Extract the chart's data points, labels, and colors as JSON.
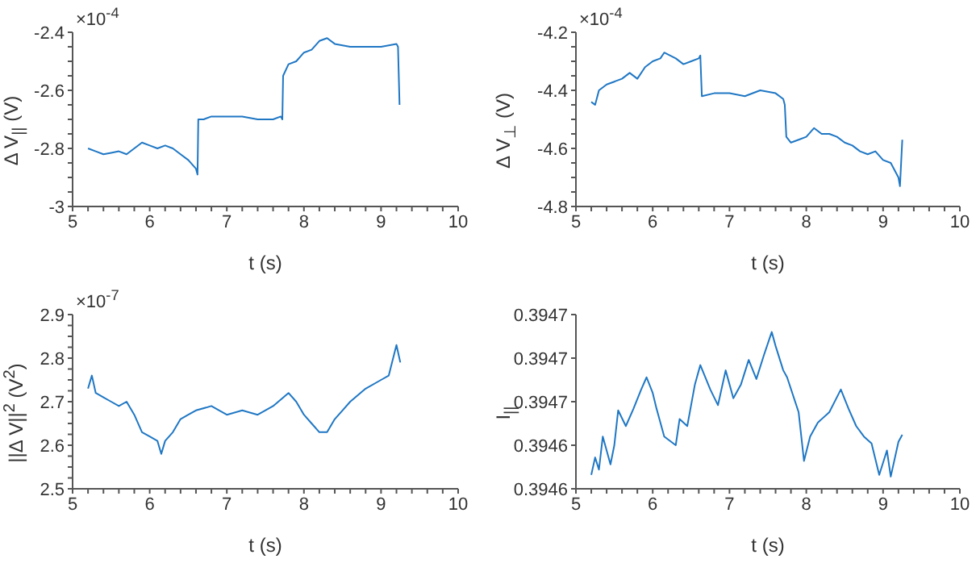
{
  "chart_data": [
    {
      "type": "line",
      "xlabel": "t (s)",
      "ylabel": "Δ V$_{||}$ (V)",
      "annotations": [
        "×10$^{-4}$"
      ],
      "color": "#1f77c4",
      "x": [
        5.2,
        5.3,
        5.4,
        5.5,
        5.6,
        5.7,
        5.8,
        5.9,
        6.0,
        6.1,
        6.2,
        6.3,
        6.4,
        6.5,
        6.6,
        6.62,
        6.63,
        6.7,
        6.8,
        7.0,
        7.2,
        7.4,
        7.6,
        7.7,
        7.72,
        7.73,
        7.8,
        7.9,
        8.0,
        8.1,
        8.2,
        8.3,
        8.4,
        8.6,
        8.8,
        9.0,
        9.2,
        9.22,
        9.24
      ],
      "values": [
        -2.8,
        -2.81,
        -2.82,
        -2.815,
        -2.81,
        -2.82,
        -2.8,
        -2.78,
        -2.79,
        -2.8,
        -2.79,
        -2.8,
        -2.82,
        -2.84,
        -2.87,
        -2.89,
        -2.7,
        -2.7,
        -2.69,
        -2.69,
        -2.69,
        -2.7,
        -2.7,
        -2.69,
        -2.7,
        -2.55,
        -2.51,
        -2.5,
        -2.47,
        -2.46,
        -2.43,
        -2.42,
        -2.44,
        -2.45,
        -2.45,
        -2.45,
        -2.44,
        -2.45,
        -2.65
      ],
      "xlim": [
        5,
        10
      ],
      "xticks": [
        5,
        {
          "value": 5.2,
          "label": null
        },
        {
          "value": 5.4,
          "label": null
        },
        {
          "value": 5.6,
          "label": null
        },
        {
          "value": 5.8,
          "label": null
        },
        6,
        {
          "value": 6.2,
          "label": null
        },
        {
          "value": 6.4,
          "label": null
        },
        {
          "value": 6.6,
          "label": null
        },
        {
          "value": 6.8,
          "label": null
        },
        7,
        {
          "value": 7.2,
          "label": null
        },
        {
          "value": 7.4,
          "label": null
        },
        {
          "value": 7.6,
          "label": null
        },
        {
          "value": 7.8,
          "label": null
        },
        8,
        {
          "value": 8.2,
          "label": null
        },
        {
          "value": 8.4,
          "label": null
        },
        {
          "value": 8.6,
          "label": null
        },
        {
          "value": 8.8,
          "label": null
        },
        9,
        {
          "value": 9.2,
          "label": null
        },
        {
          "value": 9.4,
          "label": null
        },
        {
          "value": 9.6,
          "label": null
        },
        {
          "value": 9.8,
          "label": null
        },
        10
      ],
      "ylim": [
        -3,
        -2.4
      ],
      "yticks": [
        -3,
        {
          "value": -2.95,
          "label": null
        },
        {
          "value": -2.9,
          "label": null
        },
        {
          "value": -2.85,
          "label": null
        },
        -2.8,
        {
          "value": -2.75,
          "label": null
        },
        {
          "value": -2.7,
          "label": null
        },
        {
          "value": -2.65,
          "label": null
        },
        -2.6,
        {
          "value": -2.55,
          "label": null
        },
        {
          "value": -2.5,
          "label": null
        },
        {
          "value": -2.45,
          "label": null
        },
        -2.4
      ]
    },
    {
      "type": "line",
      "xlabel": "t (s)",
      "ylabel": "Δ V$_{⊥}$ (V)",
      "annotations": [
        "×10$^{-4}$"
      ],
      "color": "#1f77c4",
      "x": [
        5.2,
        5.25,
        5.3,
        5.4,
        5.5,
        5.6,
        5.7,
        5.8,
        5.9,
        6.0,
        6.1,
        6.15,
        6.3,
        6.4,
        6.5,
        6.6,
        6.62,
        6.64,
        6.8,
        7.0,
        7.2,
        7.4,
        7.6,
        7.7,
        7.72,
        7.74,
        7.8,
        7.9,
        8.0,
        8.1,
        8.2,
        8.3,
        8.4,
        8.5,
        8.6,
        8.7,
        8.8,
        8.9,
        9.0,
        9.1,
        9.2,
        9.22,
        9.25
      ],
      "values": [
        -4.44,
        -4.45,
        -4.4,
        -4.38,
        -4.37,
        -4.36,
        -4.34,
        -4.36,
        -4.32,
        -4.3,
        -4.29,
        -4.27,
        -4.29,
        -4.31,
        -4.3,
        -4.29,
        -4.28,
        -4.42,
        -4.41,
        -4.41,
        -4.42,
        -4.4,
        -4.41,
        -4.43,
        -4.45,
        -4.56,
        -4.58,
        -4.57,
        -4.56,
        -4.53,
        -4.55,
        -4.55,
        -4.56,
        -4.58,
        -4.59,
        -4.61,
        -4.62,
        -4.61,
        -4.64,
        -4.65,
        -4.7,
        -4.73,
        -4.57
      ],
      "xlim": [
        5,
        10
      ],
      "xticks": [
        5,
        {
          "value": 5.2,
          "label": null
        },
        {
          "value": 5.4,
          "label": null
        },
        {
          "value": 5.6,
          "label": null
        },
        {
          "value": 5.8,
          "label": null
        },
        6,
        {
          "value": 6.2,
          "label": null
        },
        {
          "value": 6.4,
          "label": null
        },
        {
          "value": 6.6,
          "label": null
        },
        {
          "value": 6.8,
          "label": null
        },
        7,
        {
          "value": 7.2,
          "label": null
        },
        {
          "value": 7.4,
          "label": null
        },
        {
          "value": 7.6,
          "label": null
        },
        {
          "value": 7.8,
          "label": null
        },
        8,
        {
          "value": 8.2,
          "label": null
        },
        {
          "value": 8.4,
          "label": null
        },
        {
          "value": 8.6,
          "label": null
        },
        {
          "value": 8.8,
          "label": null
        },
        9,
        {
          "value": 9.2,
          "label": null
        },
        {
          "value": 9.4,
          "label": null
        },
        {
          "value": 9.6,
          "label": null
        },
        {
          "value": 9.8,
          "label": null
        },
        10
      ],
      "ylim": [
        -4.8,
        -4.2
      ],
      "yticks": [
        -4.8,
        {
          "value": -4.75,
          "label": null
        },
        {
          "value": -4.7,
          "label": null
        },
        {
          "value": -4.65,
          "label": null
        },
        -4.6,
        {
          "value": -4.55,
          "label": null
        },
        {
          "value": -4.5,
          "label": null
        },
        {
          "value": -4.45,
          "label": null
        },
        -4.4,
        {
          "value": -4.35,
          "label": null
        },
        {
          "value": -4.3,
          "label": null
        },
        {
          "value": -4.25,
          "label": null
        },
        -4.2
      ]
    },
    {
      "type": "line",
      "xlabel": "t (s)",
      "ylabel": "||Δ V||$^{2}$ (V$^{2}$)",
      "annotations": [
        "×10$^{-7}$"
      ],
      "color": "#1f77c4",
      "x": [
        5.2,
        5.25,
        5.3,
        5.4,
        5.5,
        5.6,
        5.7,
        5.8,
        5.9,
        6.0,
        6.1,
        6.15,
        6.2,
        6.3,
        6.4,
        6.5,
        6.6,
        6.8,
        7.0,
        7.2,
        7.4,
        7.6,
        7.8,
        7.9,
        8.0,
        8.1,
        8.2,
        8.3,
        8.4,
        8.5,
        8.6,
        8.8,
        9.0,
        9.1,
        9.2,
        9.25
      ],
      "values": [
        2.73,
        2.76,
        2.72,
        2.71,
        2.7,
        2.69,
        2.7,
        2.67,
        2.63,
        2.62,
        2.61,
        2.58,
        2.61,
        2.63,
        2.66,
        2.67,
        2.68,
        2.69,
        2.67,
        2.68,
        2.67,
        2.69,
        2.72,
        2.7,
        2.67,
        2.65,
        2.63,
        2.63,
        2.66,
        2.68,
        2.7,
        2.73,
        2.75,
        2.76,
        2.83,
        2.79
      ],
      "xlim": [
        5,
        10
      ],
      "xticks": [
        5,
        {
          "value": 5.2,
          "label": null
        },
        {
          "value": 5.4,
          "label": null
        },
        {
          "value": 5.6,
          "label": null
        },
        {
          "value": 5.8,
          "label": null
        },
        6,
        {
          "value": 6.2,
          "label": null
        },
        {
          "value": 6.4,
          "label": null
        },
        {
          "value": 6.6,
          "label": null
        },
        {
          "value": 6.8,
          "label": null
        },
        7,
        {
          "value": 7.2,
          "label": null
        },
        {
          "value": 7.4,
          "label": null
        },
        {
          "value": 7.6,
          "label": null
        },
        {
          "value": 7.8,
          "label": null
        },
        8,
        {
          "value": 8.2,
          "label": null
        },
        {
          "value": 8.4,
          "label": null
        },
        {
          "value": 8.6,
          "label": null
        },
        {
          "value": 8.8,
          "label": null
        },
        9,
        {
          "value": 9.2,
          "label": null
        },
        {
          "value": 9.4,
          "label": null
        },
        {
          "value": 9.6,
          "label": null
        },
        {
          "value": 9.8,
          "label": null
        },
        10
      ],
      "ylim": [
        2.5,
        2.9
      ],
      "yticks": [
        2.5,
        {
          "value": 2.525,
          "label": null
        },
        {
          "value": 2.55,
          "label": null
        },
        {
          "value": 2.575,
          "label": null
        },
        2.6,
        {
          "value": 2.625,
          "label": null
        },
        {
          "value": 2.65,
          "label": null
        },
        {
          "value": 2.675,
          "label": null
        },
        2.7,
        {
          "value": 2.725,
          "label": null
        },
        {
          "value": 2.75,
          "label": null
        },
        {
          "value": 2.775,
          "label": null
        },
        2.8,
        {
          "value": 2.825,
          "label": null
        },
        {
          "value": 2.85,
          "label": null
        },
        {
          "value": 2.875,
          "label": null
        },
        2.9
      ]
    },
    {
      "type": "line",
      "xlabel": "t (s)",
      "ylabel": "I$_{||}$",
      "color": "#1f77c4",
      "x": [
        5.2,
        5.25,
        5.3,
        5.35,
        5.45,
        5.5,
        5.55,
        5.65,
        5.75,
        5.85,
        5.92,
        6.0,
        6.05,
        6.15,
        6.3,
        6.35,
        6.45,
        6.55,
        6.62,
        6.75,
        6.85,
        6.95,
        7.05,
        7.15,
        7.25,
        7.35,
        7.45,
        7.55,
        7.6,
        7.7,
        7.75,
        7.9,
        7.97,
        8.05,
        8.15,
        8.3,
        8.45,
        8.55,
        8.65,
        8.75,
        8.85,
        8.95,
        9.05,
        9.1,
        9.2,
        9.25
      ],
      "values": [
        0.394623,
        0.394633,
        0.394626,
        0.394645,
        0.394629,
        0.39464,
        0.39466,
        0.394651,
        0.394661,
        0.394672,
        0.394679,
        0.39467,
        0.394661,
        0.394645,
        0.39464,
        0.394655,
        0.394651,
        0.394675,
        0.394686,
        0.394672,
        0.394663,
        0.394683,
        0.394667,
        0.394675,
        0.394689,
        0.394678,
        0.394692,
        0.394705,
        0.394697,
        0.394683,
        0.394679,
        0.394659,
        0.394631,
        0.394645,
        0.394653,
        0.394659,
        0.394672,
        0.394661,
        0.394651,
        0.394645,
        0.394641,
        0.394623,
        0.394637,
        0.394622,
        0.394642,
        0.394646
      ],
      "xlim": [
        5,
        10
      ],
      "xticks": [
        5,
        {
          "value": 5.2,
          "label": null
        },
        {
          "value": 5.4,
          "label": null
        },
        {
          "value": 5.6,
          "label": null
        },
        {
          "value": 5.8,
          "label": null
        },
        6,
        {
          "value": 6.2,
          "label": null
        },
        {
          "value": 6.4,
          "label": null
        },
        {
          "value": 6.6,
          "label": null
        },
        {
          "value": 6.8,
          "label": null
        },
        7,
        {
          "value": 7.2,
          "label": null
        },
        {
          "value": 7.4,
          "label": null
        },
        {
          "value": 7.6,
          "label": null
        },
        {
          "value": 7.8,
          "label": null
        },
        8,
        {
          "value": 8.2,
          "label": null
        },
        {
          "value": 8.4,
          "label": null
        },
        {
          "value": 8.6,
          "label": null
        },
        {
          "value": 8.8,
          "label": null
        },
        9,
        {
          "value": 9.2,
          "label": null
        },
        {
          "value": 9.4,
          "label": null
        },
        {
          "value": 9.6,
          "label": null
        },
        {
          "value": 9.8,
          "label": null
        },
        10
      ],
      "ylim": [
        0.394615,
        0.394715
      ],
      "yticks": [
        {
          "value": 0.394615,
          "label": "0.3946"
        },
        {
          "value": 0.39464,
          "label": "0.3946"
        },
        {
          "value": 0.394665,
          "label": "0.3947"
        },
        {
          "value": 0.39469,
          "label": "0.3947"
        },
        {
          "value": 0.394715,
          "label": "0.3947"
        }
      ]
    }
  ]
}
